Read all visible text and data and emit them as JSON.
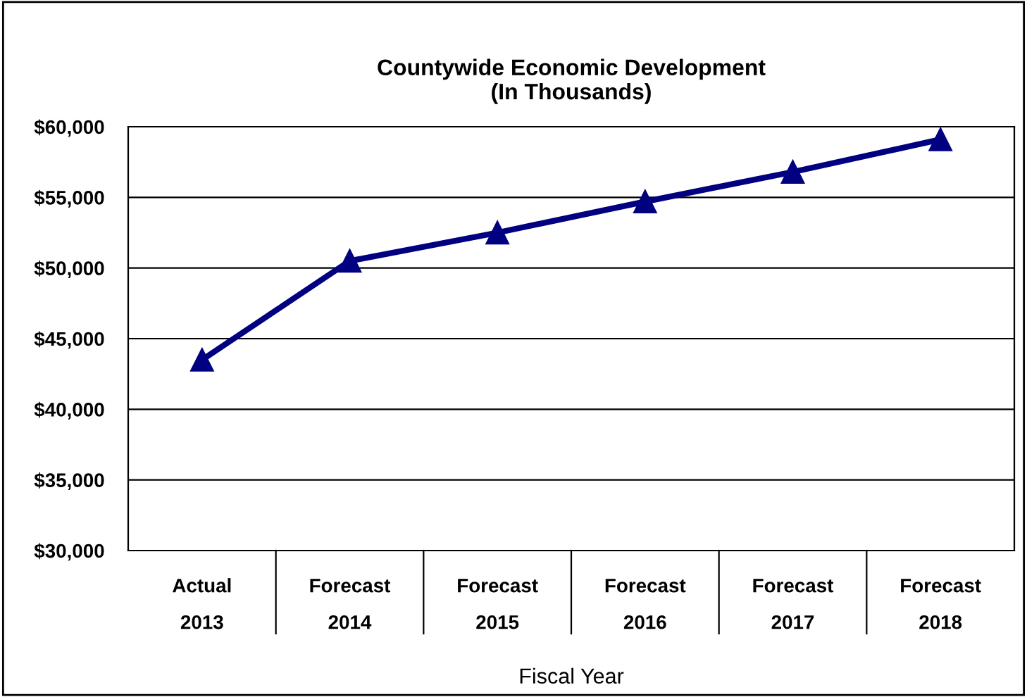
{
  "chart_data": {
    "type": "line",
    "title": "Countywide Economic Development\n(In Thousands)",
    "xlabel": "Fiscal Year",
    "categories": [
      "Actual\n2013",
      "Forecast\n2014",
      "Forecast\n2015",
      "Forecast\n2016",
      "Forecast\n2017",
      "Forecast\n2018"
    ],
    "series": [
      {
        "color": "#000080",
        "values": [
          43500,
          50500,
          52500,
          54700,
          56800,
          59100
        ]
      }
    ],
    "ylim": [
      30000,
      60000
    ],
    "yticks": [
      {
        "value": 30000,
        "label": "$30,000"
      },
      {
        "value": 35000,
        "label": "$35,000"
      },
      {
        "value": 40000,
        "label": "$40,000"
      },
      {
        "value": 45000,
        "label": "$45,000"
      },
      {
        "value": 50000,
        "label": "$50,000"
      },
      {
        "value": 55000,
        "label": "$55,000"
      },
      {
        "value": 60000,
        "label": "$60,000"
      }
    ],
    "grid": "y",
    "marker": "triangle",
    "line_style": "solid",
    "legend": false
  }
}
